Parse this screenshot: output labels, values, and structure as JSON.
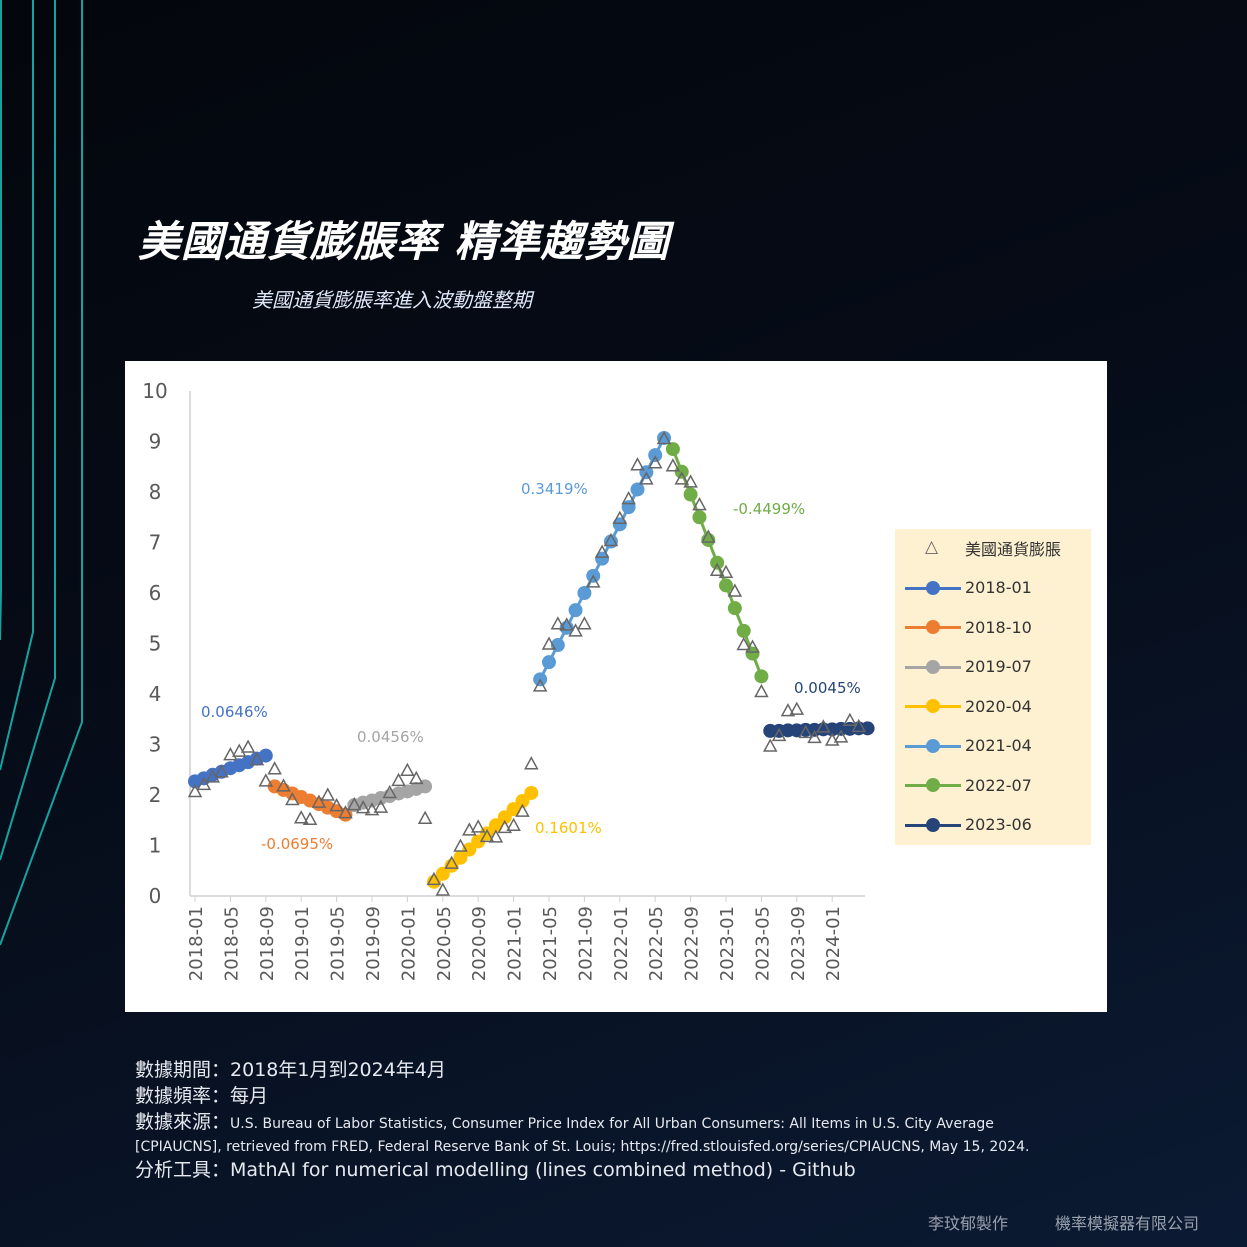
{
  "header": {
    "title": "美國通貨膨脹率 精準趨勢圖",
    "subtitle": "美國通貨膨脹率進入波動盤整期"
  },
  "footer": {
    "period_label": "數據期間：",
    "period_value": "2018年1月到2024年4月",
    "freq_label": "數據頻率：",
    "freq_value": "每月",
    "source_label": "數據來源：",
    "source_value_1": "U.S. Bureau of Labor Statistics, Consumer Price Index for All Urban Consumers: All Items in U.S. City Average",
    "source_value_2": "[CPIAUCNS], retrieved from FRED, Federal Reserve Bank of St. Louis; https://fred.stlouisfed.org/series/CPIAUCNS, May 15, 2024.",
    "tool_label": "分析工具：",
    "tool_value": "MathAI  for numerical modelling (lines combined method) - Github"
  },
  "credits": {
    "author": "李玟郁製作",
    "company": "機率模擬器有限公司"
  },
  "colors": {
    "background": "#060c18",
    "accent_line": "#16a3a0",
    "legend_bg": "#fdf1d1"
  },
  "chart_data": {
    "type": "line",
    "title": "",
    "xlabel": "",
    "ylabel": "",
    "ylim": [
      0,
      10
    ],
    "yticks": [
      "0",
      "1",
      "2",
      "3",
      "4",
      "5",
      "6",
      "7",
      "8",
      "9",
      "10"
    ],
    "grid": false,
    "legend_position": "right",
    "x_ticks": [
      "2018-01",
      "2018-05",
      "2018-09",
      "2019-01",
      "2019-05",
      "2019-09",
      "2020-01",
      "2020-05",
      "2020-09",
      "2021-01",
      "2021-05",
      "2021-09",
      "2022-01",
      "2022-05",
      "2022-09",
      "2023-01",
      "2023-05",
      "2023-09",
      "2024-01"
    ],
    "actual": {
      "name": "美國通貨膨脹",
      "marker": "triangle-open",
      "color": "#666666",
      "start": "2018-01",
      "values": [
        2.07,
        2.21,
        2.36,
        2.46,
        2.8,
        2.87,
        2.95,
        2.7,
        2.28,
        2.52,
        2.18,
        1.91,
        1.55,
        1.52,
        1.86,
        2.0,
        1.79,
        1.65,
        1.81,
        1.75,
        1.71,
        1.76,
        2.05,
        2.29,
        2.49,
        2.33,
        1.54,
        0.33,
        0.12,
        0.65,
        0.99,
        1.31,
        1.37,
        1.18,
        1.17,
        1.36,
        1.4,
        1.68,
        2.62,
        4.16,
        4.99,
        5.39,
        5.37,
        5.25,
        5.39,
        6.22,
        6.81,
        7.04,
        7.48,
        7.87,
        8.54,
        8.26,
        8.58,
        9.06,
        8.52,
        8.26,
        8.2,
        7.75,
        7.11,
        6.45,
        6.41,
        6.04,
        4.98,
        4.93,
        4.05,
        2.97,
        3.18,
        3.67,
        3.7,
        3.24,
        3.14,
        3.35,
        3.09,
        3.15,
        3.48,
        3.36
      ]
    },
    "series": [
      {
        "name": "2018-01",
        "color": "#4472c4",
        "annotation": "0.0646%",
        "start": "2018-01",
        "values": [
          2.27,
          2.33,
          2.4,
          2.46,
          2.53,
          2.59,
          2.65,
          2.72,
          2.78
        ]
      },
      {
        "name": "2018-10",
        "color": "#ed7d31",
        "annotation": "-0.0695%",
        "start": "2018-10",
        "values": [
          2.17,
          2.1,
          2.03,
          1.96,
          1.89,
          1.82,
          1.75,
          1.68,
          1.61
        ]
      },
      {
        "name": "2019-07",
        "color": "#a5a5a5",
        "annotation": "0.0456%",
        "start": "2019-07",
        "values": [
          1.8,
          1.85,
          1.89,
          1.94,
          1.98,
          2.03,
          2.07,
          2.12,
          2.17
        ]
      },
      {
        "name": "2020-04",
        "color": "#ffc000",
        "annotation": "0.1601%",
        "start": "2020-04",
        "values": [
          0.28,
          0.44,
          0.6,
          0.76,
          0.92,
          1.08,
          1.24,
          1.4,
          1.56,
          1.72,
          1.88,
          2.04
        ]
      },
      {
        "name": "2021-04",
        "color": "#5b9bd5",
        "annotation": "0.3419%",
        "start": "2021-04",
        "values": [
          4.29,
          4.63,
          4.97,
          5.31,
          5.66,
          6.0,
          6.34,
          6.68,
          7.02,
          7.36,
          7.7,
          8.05,
          8.39,
          8.73,
          9.07
        ]
      },
      {
        "name": "2022-07",
        "color": "#70ad47",
        "annotation": "-0.4499%",
        "start": "2022-07",
        "values": [
          8.85,
          8.4,
          7.95,
          7.5,
          7.05,
          6.6,
          6.15,
          5.7,
          5.25,
          4.8,
          4.35
        ]
      },
      {
        "name": "2023-06",
        "color": "#264478",
        "annotation": "0.0045%",
        "start": "2023-06",
        "values": [
          3.27,
          3.27,
          3.28,
          3.28,
          3.29,
          3.29,
          3.3,
          3.3,
          3.31,
          3.31,
          3.32,
          3.32
        ]
      }
    ]
  }
}
